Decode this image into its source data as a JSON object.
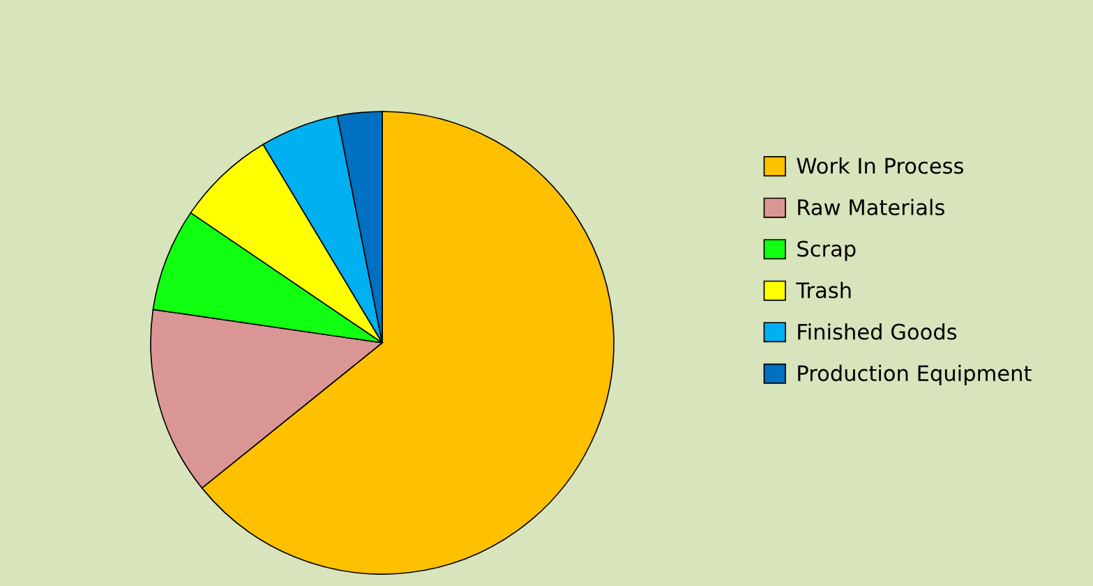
{
  "chart_data": {
    "type": "pie",
    "categories": [
      "Work In Process",
      "Raw Materials",
      "Scrap",
      "Trash",
      "Finished Goods",
      "Production Equipment"
    ],
    "values": [
      64.2,
      13.1,
      7.2,
      6.9,
      5.5,
      3.1
    ],
    "colors": [
      "#ffc000",
      "#da9694",
      "#11ff11",
      "#ffff00",
      "#00b0f0",
      "#0070c0"
    ],
    "legend": "right"
  }
}
